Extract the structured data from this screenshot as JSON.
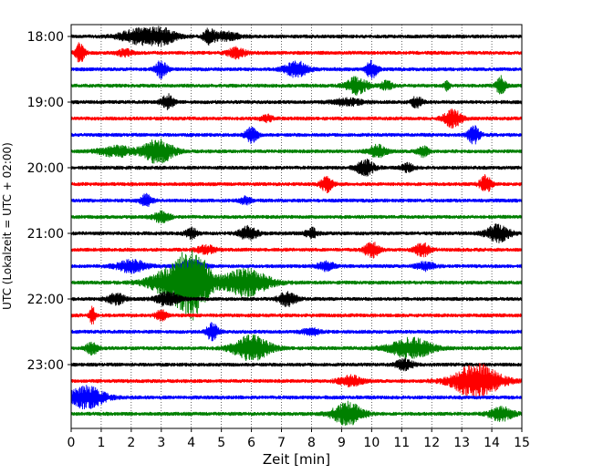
{
  "chart_data": {
    "type": "line",
    "title": "",
    "xlabel": "Zeit  [min]",
    "ylabel": "UTC (Lokalzeit = UTC + 02:00)",
    "xlim": [
      0,
      15
    ],
    "x_ticks": [
      "0",
      "1",
      "2",
      "3",
      "4",
      "5",
      "6",
      "7",
      "8",
      "9",
      "10",
      "11",
      "12",
      "13",
      "14",
      "15"
    ],
    "y_tick_labels": [
      "18:00",
      "19:00",
      "20:00",
      "21:00",
      "22:00",
      "23:00"
    ],
    "trace_interval_min": 15,
    "grid_x": "dotted vertical lines at each minute",
    "colors": [
      "#000000",
      "#ff0000",
      "#0000ff",
      "#008000"
    ],
    "series": [
      {
        "start": "18:00",
        "color": "#000000",
        "events": [
          [
            2.2,
            0.6,
            0.8
          ],
          [
            3.0,
            0.5,
            0.9
          ],
          [
            4.6,
            0.2,
            0.9
          ],
          [
            5.2,
            0.4,
            0.5
          ]
        ]
      },
      {
        "start": "18:15",
        "color": "#ff0000",
        "events": [
          [
            0.3,
            0.15,
            1.2
          ],
          [
            1.8,
            0.25,
            0.4
          ],
          [
            5.5,
            0.3,
            0.6
          ]
        ]
      },
      {
        "start": "18:30",
        "color": "#0000ff",
        "events": [
          [
            3.0,
            0.2,
            1.0
          ],
          [
            7.5,
            0.4,
            0.9
          ],
          [
            10.0,
            0.2,
            1.0
          ]
        ]
      },
      {
        "start": "18:45",
        "color": "#008000",
        "events": [
          [
            9.5,
            0.35,
            1.0
          ],
          [
            10.5,
            0.2,
            0.5
          ],
          [
            14.3,
            0.15,
            1.1
          ],
          [
            12.5,
            0.1,
            0.5
          ]
        ]
      },
      {
        "start": "19:00",
        "color": "#000000",
        "events": [
          [
            3.2,
            0.2,
            0.9
          ],
          [
            9.2,
            0.5,
            0.4
          ],
          [
            11.5,
            0.2,
            0.6
          ]
        ]
      },
      {
        "start": "19:15",
        "color": "#ff0000",
        "events": [
          [
            6.5,
            0.2,
            0.4
          ],
          [
            12.7,
            0.3,
            1.0
          ]
        ]
      },
      {
        "start": "19:30",
        "color": "#0000ff",
        "events": [
          [
            6.0,
            0.2,
            0.9
          ],
          [
            13.4,
            0.2,
            1.0
          ]
        ]
      },
      {
        "start": "19:45",
        "color": "#008000",
        "events": [
          [
            1.5,
            0.6,
            0.6
          ],
          [
            2.9,
            0.5,
            1.4
          ],
          [
            10.2,
            0.3,
            0.7
          ],
          [
            11.7,
            0.2,
            0.6
          ]
        ]
      },
      {
        "start": "20:00",
        "color": "#000000",
        "events": [
          [
            9.8,
            0.3,
            0.9
          ],
          [
            11.2,
            0.2,
            0.5
          ]
        ]
      },
      {
        "start": "20:15",
        "color": "#ff0000",
        "events": [
          [
            8.5,
            0.2,
            0.9
          ],
          [
            13.8,
            0.2,
            1.0
          ]
        ]
      },
      {
        "start": "20:30",
        "color": "#0000ff",
        "events": [
          [
            2.5,
            0.2,
            0.7
          ],
          [
            5.8,
            0.2,
            0.4
          ]
        ]
      },
      {
        "start": "20:45",
        "color": "#008000",
        "events": [
          [
            3.0,
            0.3,
            0.6
          ]
        ]
      },
      {
        "start": "21:00",
        "color": "#000000",
        "events": [
          [
            4.0,
            0.2,
            0.6
          ],
          [
            5.9,
            0.3,
            0.8
          ],
          [
            8.0,
            0.2,
            0.6
          ],
          [
            14.2,
            0.4,
            1.0
          ]
        ]
      },
      {
        "start": "21:15",
        "color": "#ff0000",
        "events": [
          [
            4.5,
            0.3,
            0.5
          ],
          [
            10.0,
            0.25,
            0.9
          ],
          [
            11.7,
            0.25,
            0.8
          ]
        ]
      },
      {
        "start": "21:30",
        "color": "#0000ff",
        "events": [
          [
            2.0,
            0.5,
            0.7
          ],
          [
            4.0,
            0.4,
            0.7
          ],
          [
            8.5,
            0.3,
            0.5
          ],
          [
            11.8,
            0.3,
            0.5
          ]
        ]
      },
      {
        "start": "21:45",
        "color": "#008000",
        "events": [
          [
            3.5,
            0.8,
            2.0
          ],
          [
            4.1,
            0.5,
            3.2
          ],
          [
            5.8,
            0.8,
            1.6
          ]
        ]
      },
      {
        "start": "22:00",
        "color": "#000000",
        "events": [
          [
            1.5,
            0.3,
            0.6
          ],
          [
            3.2,
            0.4,
            0.8
          ],
          [
            7.2,
            0.3,
            0.8
          ]
        ]
      },
      {
        "start": "22:15",
        "color": "#ff0000",
        "events": [
          [
            0.7,
            0.1,
            1.0
          ],
          [
            3.0,
            0.2,
            0.6
          ]
        ]
      },
      {
        "start": "22:30",
        "color": "#0000ff",
        "events": [
          [
            4.7,
            0.2,
            1.0
          ],
          [
            8.0,
            0.3,
            0.4
          ]
        ]
      },
      {
        "start": "22:45",
        "color": "#008000",
        "events": [
          [
            0.7,
            0.2,
            0.7
          ],
          [
            6.0,
            0.6,
            1.5
          ],
          [
            11.3,
            0.7,
            1.2
          ]
        ]
      },
      {
        "start": "23:00",
        "color": "#000000",
        "events": [
          [
            11.1,
            0.3,
            0.6
          ]
        ]
      },
      {
        "start": "23:15",
        "color": "#ff0000",
        "events": [
          [
            9.3,
            0.4,
            0.6
          ],
          [
            13.5,
            0.8,
            2.0
          ]
        ]
      },
      {
        "start": "23:30",
        "color": "#0000ff",
        "events": [
          [
            0.5,
            0.6,
            1.3
          ]
        ]
      },
      {
        "start": "23:45",
        "color": "#008000",
        "events": [
          [
            9.2,
            0.5,
            1.4
          ],
          [
            14.3,
            0.4,
            0.8
          ]
        ]
      }
    ]
  }
}
